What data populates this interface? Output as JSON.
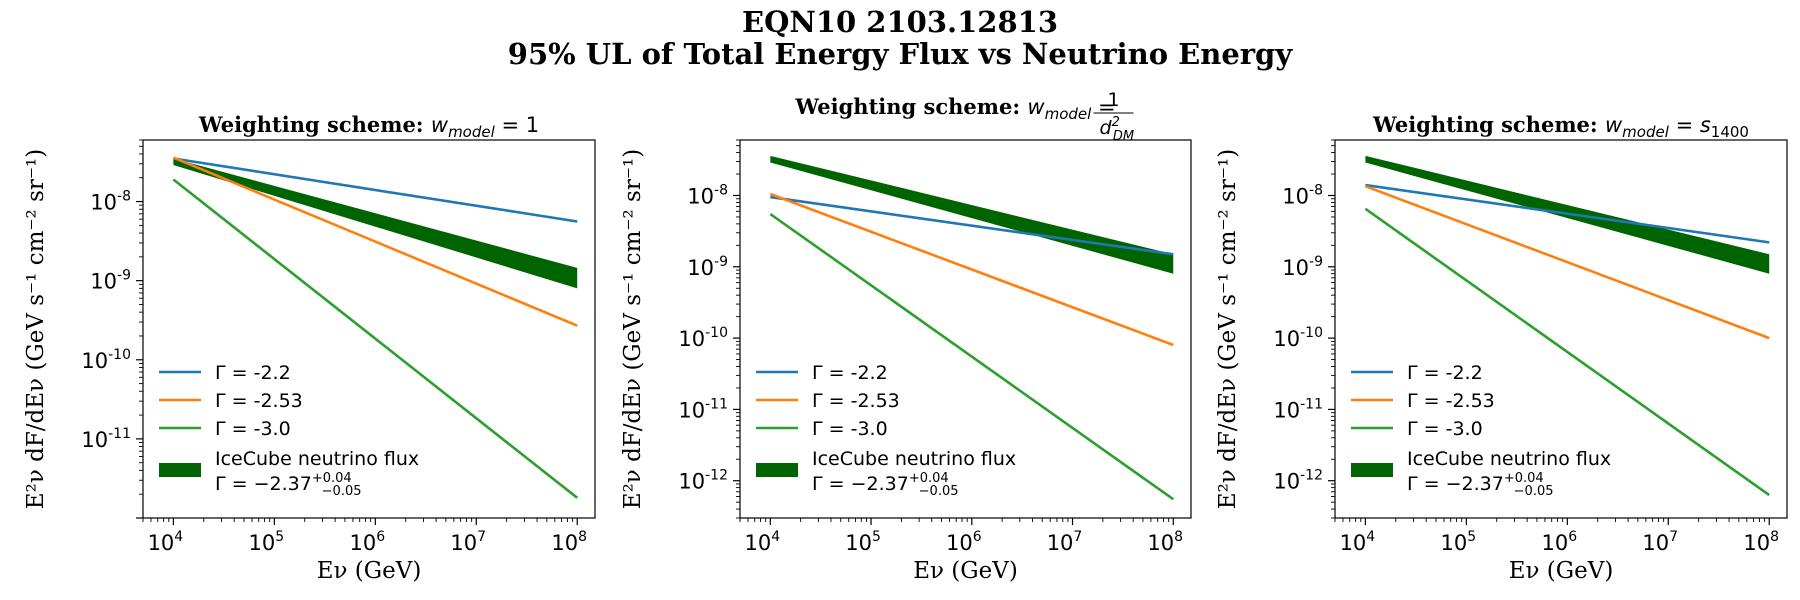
{
  "figure": {
    "title_line1": "EQN10 2103.12813",
    "title_line2": "95% UL of Total Energy Flux vs Neutrino Energy"
  },
  "chart_data": [
    {
      "type": "line",
      "subtitle_prefix": "Weighting scheme:",
      "weight_label": "w",
      "weight_sub": "model",
      "weight_value": "1",
      "xlabel": "Eν (GeV)",
      "ylabel": "E²ν dF/dEν (GeV s⁻¹ cm⁻² sr⁻¹)",
      "xscale": "log",
      "yscale": "log",
      "xlim": [
        5000.0,
        150000000.0
      ],
      "ylim": [
        1e-12,
        6e-08
      ],
      "xticks": [
        4,
        5,
        6,
        7,
        8
      ],
      "yticks": [
        -11,
        -10,
        -9,
        -8
      ],
      "series": [
        {
          "name": "Γ = -2.2",
          "color": "#1f77b4",
          "x": [
            10000.0,
            100000000.0
          ],
          "y": [
            3.5e-08,
            5.6e-09
          ]
        },
        {
          "name": "Γ = -2.53",
          "color": "#ff7f0e",
          "x": [
            10000.0,
            100000000.0
          ],
          "y": [
            3.6e-08,
            2.7e-10
          ]
        },
        {
          "name": "Γ = -3.0",
          "color": "#2ca02c",
          "x": [
            10000.0,
            100000000.0
          ],
          "y": [
            1.9e-08,
            1.8e-12
          ]
        }
      ],
      "band": {
        "name_line1": "IceCube neutrino flux",
        "name_line2_prefix": "Γ = −2.37",
        "name_sup": "+0.04",
        "name_sub": "−0.05",
        "color": "#006400",
        "x": [
          10000.0,
          100000000.0
        ],
        "upper": [
          3.5e-08,
          1.45e-09
        ],
        "lower": [
          2.9e-08,
          8e-10
        ]
      },
      "legend_position": "lower-left"
    },
    {
      "type": "line",
      "subtitle_prefix": "Weighting scheme:",
      "weight_label": "w",
      "weight_sub": "model",
      "weight_value_num": "1",
      "weight_value_den": "d",
      "weight_value_den_sub": "DM",
      "weight_value_den_sup": "2",
      "xlabel": "Eν (GeV)",
      "ylabel": "E²ν dF/dEν (GeV s⁻¹ cm⁻² sr⁻¹)",
      "xscale": "log",
      "yscale": "log",
      "xlim": [
        5000.0,
        150000000.0
      ],
      "ylim": [
        3e-13,
        6e-08
      ],
      "xticks": [
        4,
        5,
        6,
        7,
        8
      ],
      "yticks": [
        -12,
        -11,
        -10,
        -9,
        -8
      ],
      "series": [
        {
          "name": "Γ = -2.2",
          "color": "#1f77b4",
          "x": [
            10000.0,
            100000000.0
          ],
          "y": [
            9.5e-09,
            1.5e-09
          ]
        },
        {
          "name": "Γ = -2.53",
          "color": "#ff7f0e",
          "x": [
            10000.0,
            100000000.0
          ],
          "y": [
            1.05e-08,
            8e-11
          ]
        },
        {
          "name": "Γ = -3.0",
          "color": "#2ca02c",
          "x": [
            10000.0,
            100000000.0
          ],
          "y": [
            5.5e-09,
            5.5e-13
          ]
        }
      ],
      "band": {
        "name_line1": "IceCube neutrino flux",
        "name_line2_prefix": "Γ = −2.37",
        "name_sup": "+0.04",
        "name_sub": "−0.05",
        "color": "#006400",
        "x": [
          10000.0,
          100000000.0
        ],
        "upper": [
          3.6e-08,
          1.5e-09
        ],
        "lower": [
          2.9e-08,
          8e-10
        ]
      },
      "legend_position": "lower-left"
    },
    {
      "type": "line",
      "subtitle_prefix": "Weighting scheme:",
      "weight_label": "w",
      "weight_sub": "model",
      "weight_value": "s",
      "weight_value_sub": "1400",
      "xlabel": "Eν (GeV)",
      "ylabel": "E²ν dF/dEν (GeV s⁻¹ cm⁻² sr⁻¹)",
      "xscale": "log",
      "yscale": "log",
      "xlim": [
        5000.0,
        150000000.0
      ],
      "ylim": [
        3e-13,
        6e-08
      ],
      "xticks": [
        4,
        5,
        6,
        7,
        8
      ],
      "yticks": [
        -12,
        -11,
        -10,
        -9,
        -8
      ],
      "series": [
        {
          "name": "Γ = -2.2",
          "color": "#1f77b4",
          "x": [
            10000.0,
            100000000.0
          ],
          "y": [
            1.4e-08,
            2.2e-09
          ]
        },
        {
          "name": "Γ = -2.53",
          "color": "#ff7f0e",
          "x": [
            10000.0,
            100000000.0
          ],
          "y": [
            1.35e-08,
            1e-10
          ]
        },
        {
          "name": "Γ = -3.0",
          "color": "#2ca02c",
          "x": [
            10000.0,
            100000000.0
          ],
          "y": [
            6.5e-09,
            6.3e-13
          ]
        }
      ],
      "band": {
        "name_line1": "IceCube neutrino flux",
        "name_line2_prefix": "Γ = −2.37",
        "name_sup": "+0.04",
        "name_sub": "−0.05",
        "color": "#006400",
        "x": [
          10000.0,
          100000000.0
        ],
        "upper": [
          3.6e-08,
          1.5e-09
        ],
        "lower": [
          2.9e-08,
          8e-10
        ]
      },
      "legend_position": "lower-left"
    }
  ]
}
